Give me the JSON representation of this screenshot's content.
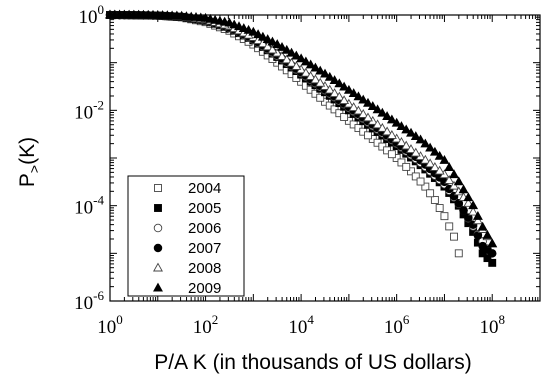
{
  "chart_data": {
    "type": "scatter",
    "xlabel": "P/A K (in thousands of US dollars)",
    "ylabel": "P>(K)",
    "ylabel_main": "P",
    "ylabel_sub": ">",
    "ylabel_tail": "(K)",
    "xscale": "log",
    "yscale": "log",
    "xlim_exp": [
      0,
      9
    ],
    "ylim_exp": [
      -6,
      0
    ],
    "x_ticks": [
      {
        "base": "10",
        "exp": "0",
        "value_exp": 0
      },
      {
        "base": "10",
        "exp": "2",
        "value_exp": 2
      },
      {
        "base": "10",
        "exp": "4",
        "value_exp": 4
      },
      {
        "base": "10",
        "exp": "6",
        "value_exp": 6
      },
      {
        "base": "10",
        "exp": "8",
        "value_exp": 8
      }
    ],
    "y_ticks": [
      {
        "base": "10",
        "exp": "0",
        "value_exp": 0
      },
      {
        "base": "10",
        "exp": "-2",
        "value_exp": -2
      },
      {
        "base": "10",
        "exp": "-4",
        "value_exp": -4
      },
      {
        "base": "10",
        "exp": "-6",
        "value_exp": -6
      }
    ],
    "grid": false,
    "legend_position": "bottom-left",
    "series": [
      {
        "name": "2004",
        "marker": "square-open",
        "points_log10": [
          [
            0,
            0
          ],
          [
            0.5,
            -0.005
          ],
          [
            1,
            -0.015
          ],
          [
            1.5,
            -0.05
          ],
          [
            2,
            -0.15
          ],
          [
            2.5,
            -0.33
          ],
          [
            3,
            -0.62
          ],
          [
            3.5,
            -1.0
          ],
          [
            4,
            -1.4
          ],
          [
            4.5,
            -1.82
          ],
          [
            5,
            -2.22
          ],
          [
            5.5,
            -2.6
          ],
          [
            6,
            -3.0
          ],
          [
            6.3,
            -3.28
          ],
          [
            6.6,
            -3.6
          ],
          [
            6.8,
            -3.88
          ],
          [
            7,
            -4.22
          ],
          [
            7.2,
            -4.65
          ],
          [
            7.3,
            -5.0
          ]
        ]
      },
      {
        "name": "2005",
        "marker": "square-filled",
        "points_log10": [
          [
            0,
            0
          ],
          [
            0.5,
            -0.004
          ],
          [
            1,
            -0.012
          ],
          [
            1.5,
            -0.04
          ],
          [
            2,
            -0.12
          ],
          [
            2.5,
            -0.28
          ],
          [
            3,
            -0.53
          ],
          [
            3.5,
            -0.88
          ],
          [
            4,
            -1.25
          ],
          [
            4.5,
            -1.62
          ],
          [
            5,
            -2.0
          ],
          [
            5.5,
            -2.38
          ],
          [
            6,
            -2.75
          ],
          [
            6.5,
            -3.15
          ],
          [
            7,
            -3.6
          ],
          [
            7.3,
            -4.0
          ],
          [
            7.6,
            -4.55
          ],
          [
            7.8,
            -5.0
          ],
          [
            8,
            -5.2
          ]
        ]
      },
      {
        "name": "2006",
        "marker": "circle-open",
        "points_log10": [
          [
            0,
            0
          ],
          [
            0.5,
            -0.004
          ],
          [
            1,
            -0.012
          ],
          [
            1.5,
            -0.04
          ],
          [
            2,
            -0.12
          ],
          [
            2.5,
            -0.27
          ],
          [
            3,
            -0.52
          ],
          [
            3.5,
            -0.86
          ],
          [
            4,
            -1.22
          ],
          [
            4.5,
            -1.58
          ],
          [
            5,
            -1.95
          ],
          [
            5.5,
            -2.33
          ],
          [
            6,
            -2.7
          ],
          [
            6.5,
            -3.1
          ],
          [
            7,
            -3.55
          ],
          [
            7.4,
            -4.1
          ],
          [
            7.7,
            -4.6
          ],
          [
            7.9,
            -4.9
          ]
        ]
      },
      {
        "name": "2007",
        "marker": "circle-filled",
        "points_log10": [
          [
            0,
            0
          ],
          [
            0.5,
            -0.004
          ],
          [
            1,
            -0.012
          ],
          [
            1.5,
            -0.04
          ],
          [
            2,
            -0.11
          ],
          [
            2.5,
            -0.26
          ],
          [
            3,
            -0.5
          ],
          [
            3.5,
            -0.84
          ],
          [
            4,
            -1.2
          ],
          [
            4.5,
            -1.56
          ],
          [
            5,
            -1.93
          ],
          [
            5.5,
            -2.3
          ],
          [
            6,
            -2.68
          ],
          [
            6.5,
            -3.05
          ],
          [
            7,
            -3.5
          ],
          [
            7.3,
            -3.95
          ],
          [
            7.6,
            -4.4
          ],
          [
            7.8,
            -4.85
          ],
          [
            8,
            -5.0
          ]
        ]
      },
      {
        "name": "2008",
        "marker": "triangle-open",
        "points_log10": [
          [
            0,
            0
          ],
          [
            0.5,
            -0.004
          ],
          [
            1,
            -0.011
          ],
          [
            1.5,
            -0.035
          ],
          [
            2,
            -0.1
          ],
          [
            2.5,
            -0.24
          ],
          [
            3,
            -0.47
          ],
          [
            3.5,
            -0.8
          ],
          [
            4,
            -1.15
          ],
          [
            4.5,
            -1.5
          ],
          [
            5,
            -1.87
          ],
          [
            5.5,
            -2.23
          ],
          [
            6,
            -2.6
          ],
          [
            6.5,
            -2.97
          ],
          [
            7,
            -3.35
          ],
          [
            7.5,
            -3.95
          ],
          [
            7.8,
            -4.5
          ],
          [
            8,
            -4.8
          ]
        ]
      },
      {
        "name": "2009",
        "marker": "triangle-filled",
        "points_log10": [
          [
            0,
            0
          ],
          [
            0.5,
            -0.003
          ],
          [
            1,
            -0.008
          ],
          [
            1.5,
            -0.025
          ],
          [
            2,
            -0.07
          ],
          [
            2.5,
            -0.17
          ],
          [
            3,
            -0.36
          ],
          [
            3.5,
            -0.62
          ],
          [
            4,
            -0.92
          ],
          [
            4.5,
            -1.24
          ],
          [
            5,
            -1.58
          ],
          [
            5.5,
            -1.92
          ],
          [
            6,
            -2.27
          ],
          [
            6.5,
            -2.62
          ],
          [
            7,
            -3.05
          ],
          [
            7.3,
            -3.5
          ],
          [
            7.6,
            -4.0
          ],
          [
            7.8,
            -4.45
          ],
          [
            8,
            -4.8
          ]
        ]
      }
    ]
  }
}
